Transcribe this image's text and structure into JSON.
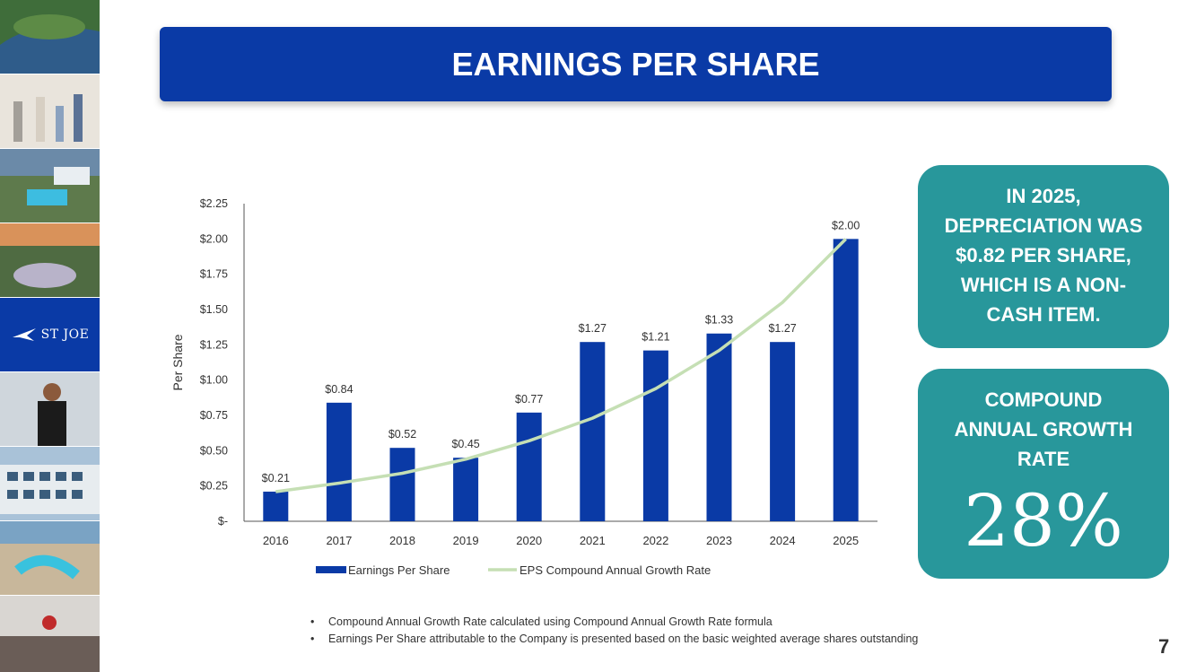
{
  "slide": {
    "title": "EARNINGS PER SHARE",
    "page_number": "7"
  },
  "sidebar": {
    "logo_text": "ST JOE"
  },
  "callouts": {
    "depreciation": "IN 2025, DEPRECIATION WAS $0.82 PER SHARE, WHICH IS A NON-CASH ITEM.",
    "cagr_label": "COMPOUND ANNUAL GROWTH RATE",
    "cagr_value": "28%"
  },
  "footnotes": [
    "Compound Annual Growth Rate calculated using Compound Annual Growth Rate formula",
    "Earnings Per Share attributable to the Company is presented based on the basic weighted average shares outstanding"
  ],
  "colors": {
    "banner": "#0a3aa6",
    "bar": "#0a3aa6",
    "trend_line": "#c5dfb4",
    "callout": "#28979b"
  },
  "chart_data": {
    "type": "bar",
    "categories": [
      "2016",
      "2017",
      "2018",
      "2019",
      "2020",
      "2021",
      "2022",
      "2023",
      "2024",
      "2025"
    ],
    "series": [
      {
        "name": "Earnings Per Share",
        "type": "bar",
        "values": [
          0.21,
          0.84,
          0.52,
          0.45,
          0.77,
          1.27,
          1.21,
          1.33,
          1.27,
          2.0
        ],
        "labels": [
          "$0.21",
          "$0.84",
          "$0.52",
          "$0.45",
          "$0.77",
          "$1.27",
          "$1.21",
          "$1.33",
          "$1.27",
          "$2.00"
        ]
      },
      {
        "name": "EPS Compound Annual Growth Rate",
        "type": "line",
        "values": [
          0.21,
          0.27,
          0.34,
          0.44,
          0.57,
          0.73,
          0.94,
          1.21,
          1.55,
          2.0
        ]
      }
    ],
    "ylabel": "Per Share",
    "ylim": [
      0,
      2.25
    ],
    "yticks": [
      0,
      0.25,
      0.5,
      0.75,
      1.0,
      1.25,
      1.5,
      1.75,
      2.0,
      2.25
    ],
    "ytick_labels": [
      "$-",
      "$0.25",
      "$0.50",
      "$0.75",
      "$1.00",
      "$1.25",
      "$1.50",
      "$1.75",
      "$2.00",
      "$2.25"
    ],
    "grid": false,
    "legend_position": "bottom"
  }
}
